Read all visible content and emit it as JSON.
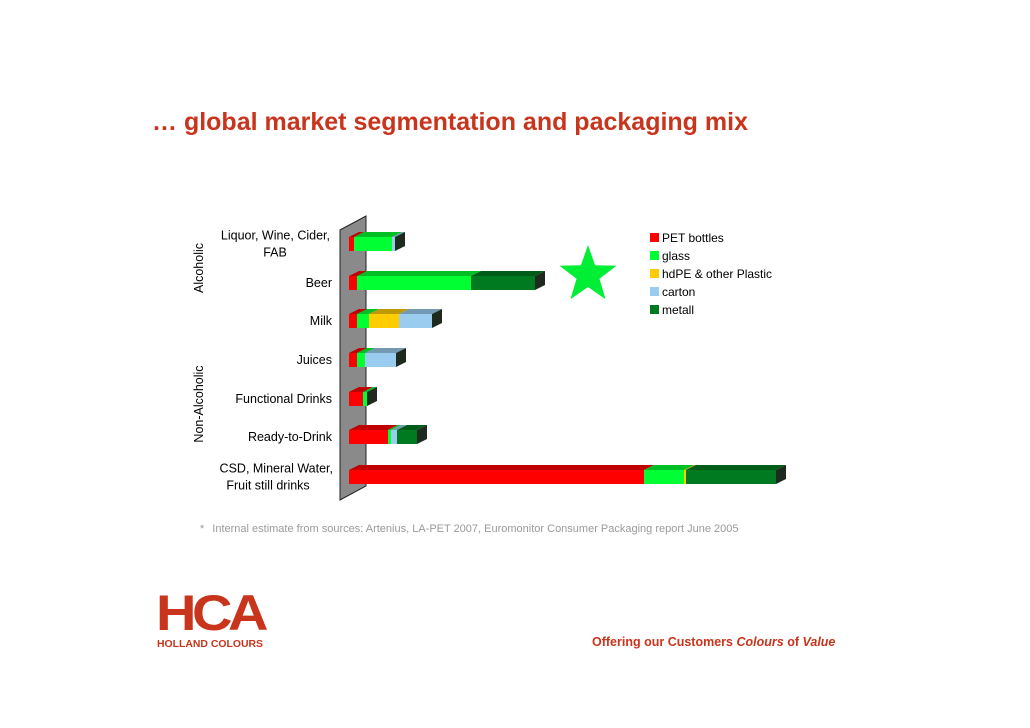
{
  "title": "… global market segmentation and packaging mix",
  "footnote": {
    "marker": "*",
    "text": "Internal estimate from sources: Artenius, LA-PET 2007, Euromonitor Consumer Packaging report June 2005"
  },
  "logo": {
    "text": "HCA",
    "subtitle": "HOLLAND COLOURS"
  },
  "tagline": {
    "part1": "Offering our Customers",
    "part2": "Colours",
    "part3": "of",
    "part4": "Value"
  },
  "star_color": "#00ee33",
  "chart_data": {
    "type": "bar",
    "orientation": "horizontal",
    "stacked": true,
    "groups": [
      {
        "label": "Alcoholic",
        "categories": [
          "Liquor, Wine, Cider, FAB",
          "Beer"
        ]
      },
      {
        "label": "Non-Alcoholic",
        "categories": [
          "Milk",
          "Juices",
          "Functional Drinks",
          "Ready-to-Drink",
          "CSD, Mineral Water, Fruit still drinks"
        ]
      }
    ],
    "categories": [
      "Liquor, Wine, Cider, FAB",
      "Beer",
      "Milk",
      "Juices",
      "Functional Drinks",
      "Ready-to-Drink",
      "CSD, Mineral Water, Fruit still drinks"
    ],
    "category_lines": [
      [
        "Liquor, Wine, Cider,",
        "FAB"
      ],
      [
        "Beer"
      ],
      [
        "Milk"
      ],
      [
        "Juices"
      ],
      [
        "Functional Drinks"
      ],
      [
        "Ready-to-Drink"
      ],
      [
        "CSD, Mineral Water,",
        "Fruit still drinks"
      ]
    ],
    "series": [
      {
        "name": "PET bottles",
        "color": "#ff0000",
        "values": [
          5,
          8,
          8,
          8,
          14,
          39,
          295
        ]
      },
      {
        "name": "glass",
        "color": "#00ff33",
        "values": [
          38,
          114,
          12,
          8,
          4,
          3,
          40
        ]
      },
      {
        "name": "hdPE & other Plastic",
        "color": "#ffcc00",
        "values": [
          0,
          0,
          30,
          0,
          0,
          0,
          2
        ]
      },
      {
        "name": "carton",
        "color": "#99ccee",
        "values": [
          3,
          0,
          33,
          31,
          0,
          6,
          0
        ]
      },
      {
        "name": "metall",
        "color": "#007a20",
        "values": [
          0,
          64,
          0,
          0,
          0,
          20,
          90
        ]
      }
    ],
    "legend_position": "top-right",
    "grid": false,
    "xlabel": "",
    "ylabel": ""
  }
}
